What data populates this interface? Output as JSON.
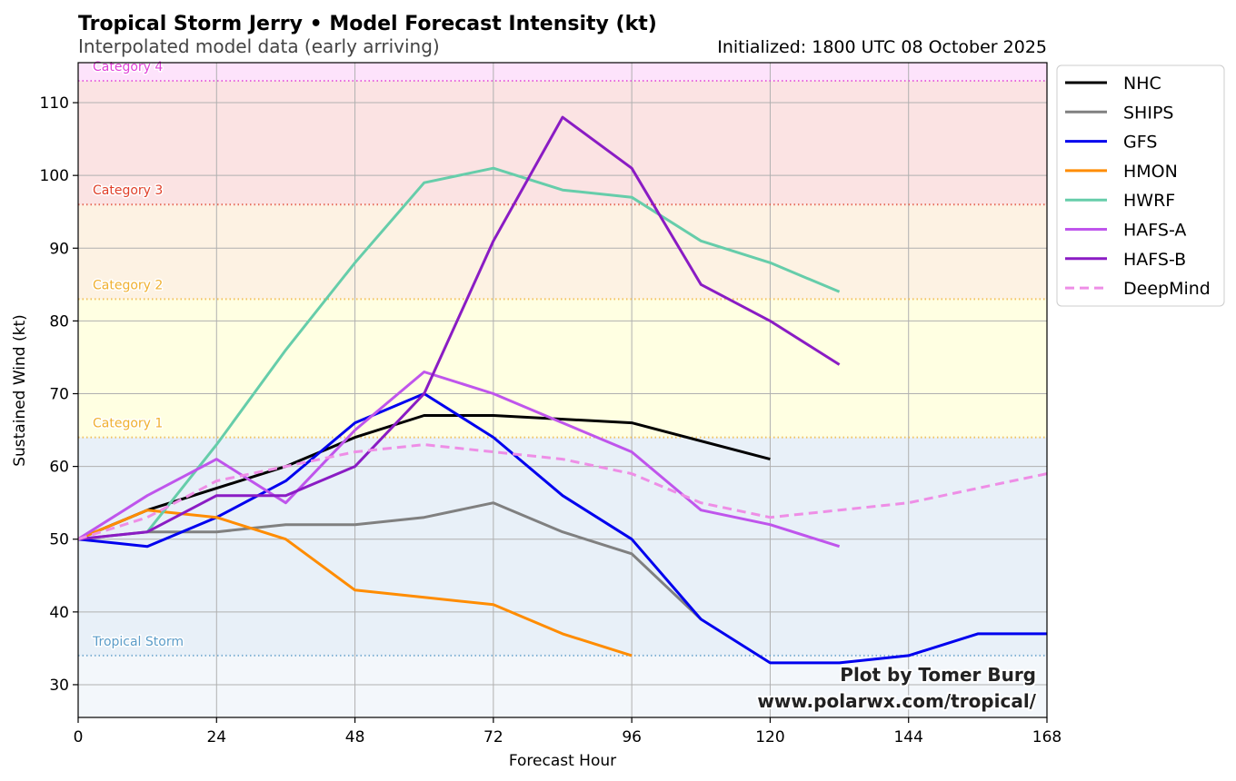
{
  "chart_data": {
    "type": "line",
    "title": "Tropical Storm Jerry • Model Forecast Intensity (kt)",
    "subtitle": "Interpolated model data (early arriving)",
    "initialized": "Initialized: 1800 UTC 08 October 2025",
    "xlabel": "Forecast Hour",
    "ylabel": "Sustained Wind (kt)",
    "xlim": [
      0,
      168
    ],
    "ylim": [
      25.5,
      115.5
    ],
    "xticks": [
      0,
      24,
      48,
      72,
      96,
      120,
      144,
      168
    ],
    "yticks": [
      30,
      40,
      50,
      60,
      70,
      80,
      90,
      100,
      110
    ],
    "grid": true,
    "legend_position": "outside-right",
    "categories": [
      {
        "name": "Tropical Storm",
        "threshold": 34,
        "label_y": 36,
        "color": "#5b9cc8",
        "band_color": "#e8f0f8"
      },
      {
        "name": "Category 1",
        "threshold": 64,
        "label_y": 66,
        "color": "#f0b030",
        "band_color": "#ffffe2"
      },
      {
        "name": "Category 2",
        "threshold": 83,
        "label_y": 85,
        "color": "#f0b030",
        "band_color": "#fdf2e3"
      },
      {
        "name": "Category 3",
        "threshold": 96,
        "label_y": 98,
        "color": "#e0402a",
        "band_color": "#fbe3e3"
      },
      {
        "name": "Category 4",
        "threshold": 113,
        "label_y": 115,
        "color": "#e040d8",
        "band_color": "#fde3fb"
      }
    ],
    "below_band_color": "#f3f7fb",
    "series": [
      {
        "name": "NHC",
        "color": "#000000",
        "dash": false,
        "x": [
          0,
          12,
          24,
          36,
          48,
          60,
          72,
          96,
          120
        ],
        "y": [
          50,
          54,
          57,
          60,
          64,
          67,
          67,
          66,
          61
        ]
      },
      {
        "name": "SHIPS",
        "color": "#808080",
        "dash": false,
        "x": [
          0,
          12,
          24,
          36,
          48,
          60,
          72,
          84,
          96,
          108
        ],
        "y": [
          50,
          51,
          51,
          52,
          52,
          53,
          55,
          51,
          48,
          39
        ]
      },
      {
        "name": "GFS",
        "color": "#0000ee",
        "dash": false,
        "x": [
          0,
          12,
          24,
          36,
          48,
          60,
          72,
          84,
          96,
          108,
          120,
          132,
          144,
          156,
          168
        ],
        "y": [
          50,
          49,
          53,
          58,
          66,
          70,
          64,
          56,
          50,
          39,
          33,
          33,
          34,
          37,
          37
        ]
      },
      {
        "name": "HMON",
        "color": "#ff8c00",
        "dash": false,
        "x": [
          0,
          12,
          24,
          36,
          48,
          60,
          72,
          84,
          96
        ],
        "y": [
          50,
          54,
          53,
          50,
          43,
          42,
          41,
          37,
          34
        ]
      },
      {
        "name": "HWRF",
        "color": "#66cdaa",
        "dash": false,
        "x": [
          12,
          24,
          36,
          48,
          60,
          72,
          84,
          96,
          108,
          120,
          132
        ],
        "y": [
          51,
          63,
          76,
          88,
          99,
          101,
          98,
          97,
          91,
          88,
          84
        ]
      },
      {
        "name": "HAFS-A",
        "color": "#bf55ec",
        "dash": false,
        "x": [
          0,
          12,
          24,
          36,
          48,
          60,
          72,
          84,
          96,
          108,
          120,
          132
        ],
        "y": [
          50,
          56,
          61,
          55,
          65,
          73,
          70,
          66,
          62,
          54,
          52,
          49
        ]
      },
      {
        "name": "HAFS-B",
        "color": "#8a1cc4",
        "dash": false,
        "x": [
          0,
          12,
          24,
          36,
          48,
          60,
          72,
          84,
          96,
          108,
          120,
          132
        ],
        "y": [
          50,
          51,
          56,
          56,
          60,
          70,
          91,
          108,
          101,
          85,
          80,
          74
        ]
      },
      {
        "name": "DeepMind",
        "color": "#ee8ee6",
        "dash": true,
        "x": [
          0,
          12,
          24,
          36,
          48,
          60,
          72,
          84,
          96,
          108,
          120,
          132,
          144,
          156,
          168
        ],
        "y": [
          50,
          53,
          58,
          60,
          62,
          63,
          62,
          61,
          59,
          55,
          53,
          54,
          55,
          57,
          59
        ]
      }
    ],
    "credit_line1": "Plot by Tomer Burg",
    "credit_line2": "www.polarwx.com/tropical/"
  }
}
